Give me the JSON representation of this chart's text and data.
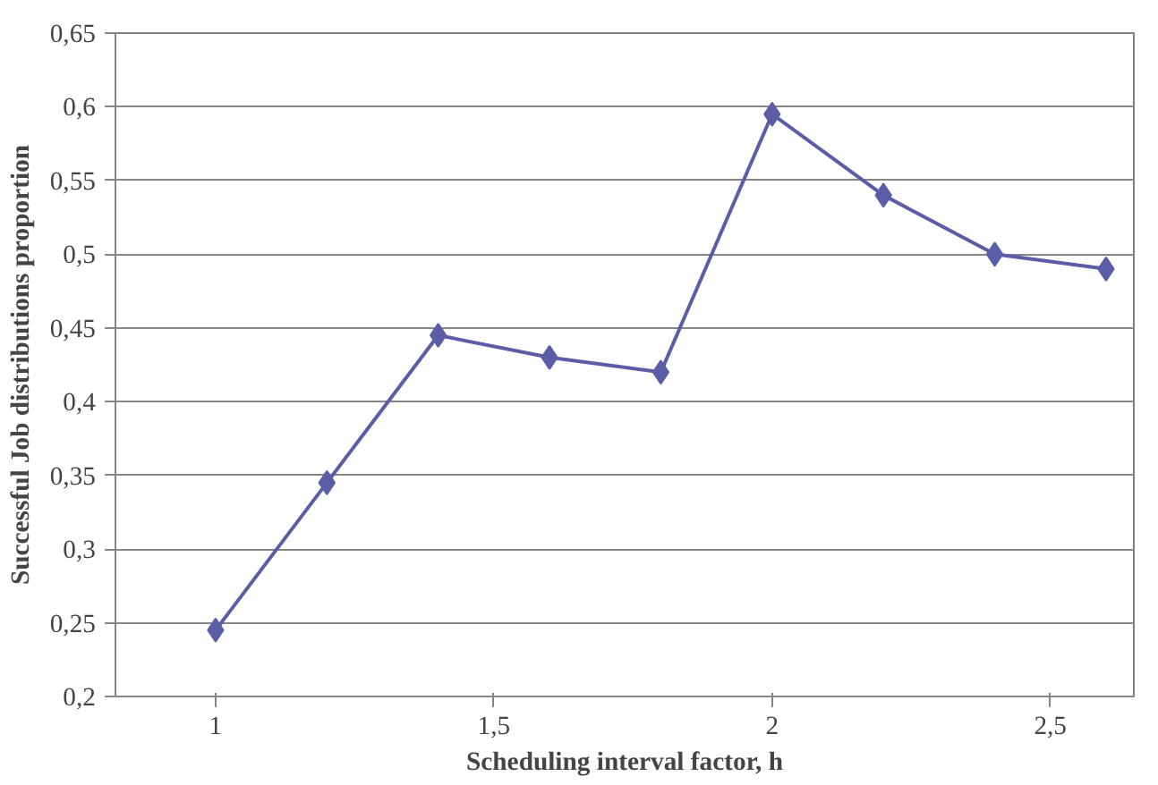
{
  "chart_data": {
    "type": "line",
    "xlabel": "Scheduling interval factor, h",
    "ylabel": "Successful Job distributions proportion",
    "x": [
      1,
      1.2,
      1.4,
      1.6,
      1.8,
      2,
      2.2,
      2.4,
      2.6
    ],
    "series": [
      {
        "color": "#5b5ea6",
        "values": [
          0.245,
          0.345,
          0.445,
          0.43,
          0.42,
          0.595,
          0.54,
          0.5,
          0.49
        ]
      }
    ],
    "xlim": [
      0.82,
      2.65
    ],
    "xticks": [
      {
        "value": 1,
        "label": "1"
      },
      {
        "value": 1.5,
        "label": "1,5"
      },
      {
        "value": 2,
        "label": "2"
      },
      {
        "value": 2.5,
        "label": "2,5"
      }
    ],
    "ylim": [
      0.2,
      0.65
    ],
    "yticks": [
      {
        "value": 0.2,
        "label": "0,2"
      },
      {
        "value": 0.25,
        "label": "0,25"
      },
      {
        "value": 0.3,
        "label": "0,3"
      },
      {
        "value": 0.35,
        "label": "0,35"
      },
      {
        "value": 0.4,
        "label": "0,4"
      },
      {
        "value": 0.45,
        "label": "0,45"
      },
      {
        "value": 0.5,
        "label": "0,5"
      },
      {
        "value": 0.55,
        "label": "0,55"
      },
      {
        "value": 0.6,
        "label": "0,6"
      },
      {
        "value": 0.65,
        "label": "0,65"
      }
    ],
    "grid": "y",
    "marker": "diamond",
    "line_style": "solid"
  }
}
